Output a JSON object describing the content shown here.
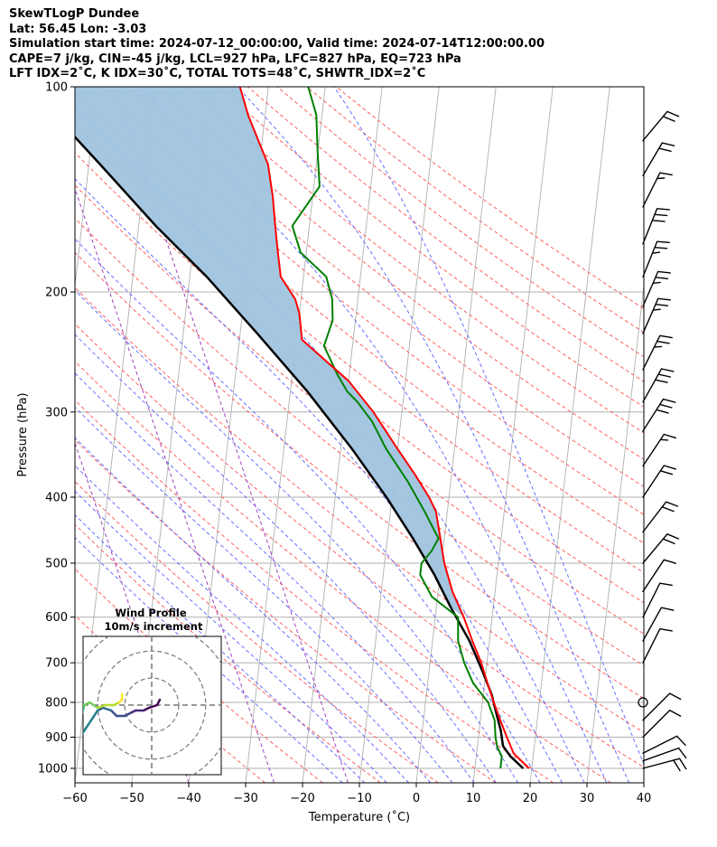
{
  "header": {
    "line1": "SkewTLogP Dundee",
    "line2": "Lat: 56.45   Lon: -3.03",
    "line3": "Simulation start time: 2024-07-12_00:00:00, Valid time: 2024-07-14T12:00:00.00",
    "line4": "CAPE=7 j/kg, CIN=-45 j/kg, LCL=927 hPa, LFC=827 hPa, EQ=723 hPa",
    "line5": "LFT IDX=2˚C, K IDX=30˚C, TOTAL TOTS=48˚C, SHWTR_IDX=2˚C"
  },
  "chart_data": {
    "type": "line",
    "xlabel": "Temperature (˚C)",
    "ylabel": "Pressure (hPa)",
    "xlim": [
      -60,
      40
    ],
    "ylim": [
      1050,
      100
    ],
    "y_scale": "log",
    "x_ticks": [
      "−60",
      "−50",
      "−40",
      "−30",
      "−20",
      "−10",
      "0",
      "10",
      "20",
      "30",
      "40"
    ],
    "y_ticks": [
      "100",
      "200",
      "300",
      "400",
      "500",
      "600",
      "700",
      "800",
      "900",
      "1000"
    ],
    "skew": true,
    "grid": true,
    "series": [
      {
        "id": "temperature",
        "color": "#ff0000",
        "points": [
          [
            19.5,
            1000
          ],
          [
            16.5,
            950
          ],
          [
            15,
            900
          ],
          [
            13.5,
            850
          ],
          [
            12,
            800
          ],
          [
            10.5,
            750
          ],
          [
            9,
            700
          ],
          [
            7,
            650
          ],
          [
            5,
            600
          ],
          [
            2.5,
            550
          ],
          [
            0.5,
            500
          ],
          [
            -1,
            450
          ],
          [
            -2,
            420
          ],
          [
            -3.5,
            400
          ],
          [
            -6.5,
            370
          ],
          [
            -10,
            340
          ],
          [
            -15,
            300
          ],
          [
            -20,
            270
          ],
          [
            -25,
            250
          ],
          [
            -29,
            235
          ],
          [
            -30,
            215
          ],
          [
            -31,
            205
          ],
          [
            -34,
            190
          ],
          [
            -35,
            175
          ],
          [
            -36,
            160
          ],
          [
            -37,
            145
          ],
          [
            -38.5,
            130
          ],
          [
            -43,
            110
          ],
          [
            -45,
            100
          ]
        ]
      },
      {
        "id": "dewpoint",
        "color": "#008000",
        "points": [
          [
            14.5,
            1000
          ],
          [
            14.5,
            960
          ],
          [
            13.5,
            930
          ],
          [
            13,
            900
          ],
          [
            12.5,
            850
          ],
          [
            11,
            800
          ],
          [
            8,
            750
          ],
          [
            6,
            700
          ],
          [
            4.5,
            650
          ],
          [
            4,
            600
          ],
          [
            -1,
            560
          ],
          [
            -3.5,
            520
          ],
          [
            -3.5,
            500
          ],
          [
            -2,
            480
          ],
          [
            -1,
            460
          ],
          [
            -4,
            420
          ],
          [
            -7.5,
            380
          ],
          [
            -12,
            340
          ],
          [
            -15,
            310
          ],
          [
            -18,
            290
          ],
          [
            -20,
            280
          ],
          [
            -22,
            265
          ],
          [
            -25,
            240
          ],
          [
            -24,
            220
          ],
          [
            -24.5,
            205
          ],
          [
            -26,
            190
          ],
          [
            -31,
            175
          ],
          [
            -33,
            160
          ],
          [
            -29,
            140
          ],
          [
            -30,
            125
          ],
          [
            -31,
            110
          ],
          [
            -33,
            100
          ]
        ]
      },
      {
        "id": "parcel",
        "color": "#000000",
        "points": [
          [
            18.5,
            1000
          ],
          [
            16,
            960
          ],
          [
            14.5,
            927
          ],
          [
            13.8,
            880
          ],
          [
            12.6,
            827
          ],
          [
            11.5,
            780
          ],
          [
            9.5,
            723
          ],
          [
            6.5,
            650
          ],
          [
            2.5,
            580
          ],
          [
            -1,
            520
          ],
          [
            -5.5,
            460
          ],
          [
            -11,
            400
          ],
          [
            -18,
            340
          ],
          [
            -27,
            280
          ],
          [
            -37,
            230
          ],
          [
            -47,
            190
          ],
          [
            -57,
            160
          ],
          [
            -68,
            130
          ],
          [
            -77,
            110
          ],
          [
            -82,
            100
          ]
        ]
      }
    ],
    "wind_barbs": [
      {
        "p": 1000,
        "u": -15,
        "v": -4
      },
      {
        "p": 975,
        "u": -14,
        "v": -5
      },
      {
        "p": 950,
        "u": -12,
        "v": -6
      },
      {
        "p": 900,
        "u": -8,
        "v": -8
      },
      {
        "p": 850,
        "u": -6,
        "v": -6
      },
      {
        "p": 800,
        "u": 0,
        "v": 0
      },
      {
        "p": 700,
        "u": -4,
        "v": -8
      },
      {
        "p": 650,
        "u": -5,
        "v": -9
      },
      {
        "p": 600,
        "u": -6,
        "v": -12
      },
      {
        "p": 550,
        "u": -8,
        "v": -12
      },
      {
        "p": 500,
        "u": -10,
        "v": -12
      },
      {
        "p": 450,
        "u": -10,
        "v": -13
      },
      {
        "p": 400,
        "u": -10,
        "v": -15
      },
      {
        "p": 360,
        "u": -12,
        "v": -18
      },
      {
        "p": 320,
        "u": -14,
        "v": -22
      },
      {
        "p": 290,
        "u": -14,
        "v": -25
      },
      {
        "p": 260,
        "u": -14,
        "v": -28
      },
      {
        "p": 230,
        "u": -14,
        "v": -32
      },
      {
        "p": 210,
        "u": -13,
        "v": -30
      },
      {
        "p": 190,
        "u": -12,
        "v": -30
      },
      {
        "p": 170,
        "u": -10,
        "v": -25
      },
      {
        "p": 150,
        "u": -10,
        "v": -20
      },
      {
        "p": 135,
        "u": -10,
        "v": -17
      },
      {
        "p": 120,
        "u": -10,
        "v": -12
      }
    ],
    "hodograph": {
      "title": "Wind Profile",
      "subtitle": "10m/s increment",
      "rings": [
        10,
        20,
        30
      ],
      "points": [
        [
          3,
          2
        ],
        [
          2,
          0
        ],
        [
          -1,
          -1
        ],
        [
          -3,
          -2
        ],
        [
          -6,
          -2
        ],
        [
          -8,
          -3
        ],
        [
          -10,
          -4
        ],
        [
          -13,
          -4
        ],
        [
          -15,
          -2
        ],
        [
          -18,
          -1
        ],
        [
          -20,
          -2
        ],
        [
          -22,
          -5
        ],
        [
          -24,
          -8
        ],
        [
          -26,
          -11
        ],
        [
          -27,
          -14
        ],
        [
          -28,
          -12
        ],
        [
          -27,
          -8
        ],
        [
          -26,
          -4
        ],
        [
          -25,
          0
        ],
        [
          -23,
          1
        ],
        [
          -20,
          -1
        ],
        [
          -17,
          0
        ],
        [
          -14,
          0
        ],
        [
          -12,
          1
        ],
        [
          -11,
          2
        ],
        [
          -11,
          4
        ]
      ]
    }
  }
}
